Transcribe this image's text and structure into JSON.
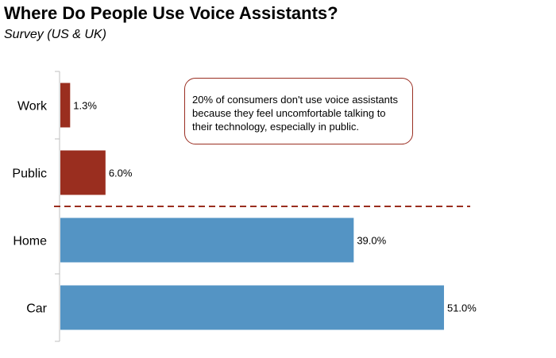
{
  "header": {
    "title": "Where Do People Use Voice Assistants?",
    "subtitle": "Survey (US & UK)"
  },
  "callout": {
    "text": "20% of consumers don't use voice assistants\nbecause they feel uncomfortable talking to\ntheir technology, especially in public."
  },
  "colors": {
    "accent_red": "#9a2e1f",
    "bar_blue": "#5494c4",
    "axis": "#bfbfbf"
  },
  "chart_data": {
    "type": "bar",
    "orientation": "horizontal",
    "categories": [
      "Work",
      "Public",
      "Home",
      "Car"
    ],
    "values": [
      1.3,
      6.0,
      39.0,
      51.0
    ],
    "value_labels": [
      "1.3%",
      "6.0%",
      "39.0%",
      "51.0%"
    ],
    "bar_colors": [
      "#9a2e1f",
      "#9a2e1f",
      "#5494c4",
      "#5494c4"
    ],
    "xlim": [
      0,
      56
    ],
    "divider": "dashed line between Public and Home",
    "grid": false,
    "legend": "none"
  }
}
